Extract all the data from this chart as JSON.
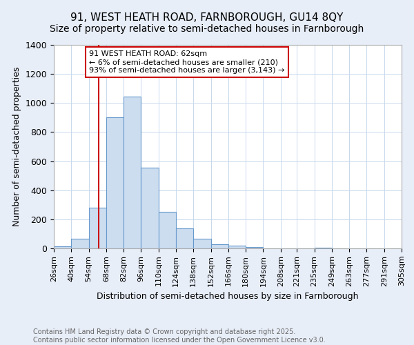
{
  "title1": "91, WEST HEATH ROAD, FARNBOROUGH, GU14 8QY",
  "title2": "Size of property relative to semi-detached houses in Farnborough",
  "xlabel": "Distribution of semi-detached houses by size in Farnborough",
  "ylabel": "Number of semi-detached properties",
  "bin_edges": [
    26,
    40,
    54,
    68,
    82,
    96,
    110,
    124,
    138,
    152,
    166,
    180,
    194,
    208,
    221,
    235,
    249,
    263,
    277,
    291,
    305
  ],
  "bar_heights": [
    15,
    65,
    280,
    900,
    1045,
    555,
    250,
    140,
    65,
    30,
    20,
    10,
    0,
    0,
    0,
    5,
    0,
    0,
    0,
    0
  ],
  "bar_color": "#ccddf0",
  "bar_edge_color": "#6699cc",
  "property_size": 62,
  "vline_color": "#cc0000",
  "ylim": [
    0,
    1400
  ],
  "yticks": [
    0,
    200,
    400,
    600,
    800,
    1000,
    1200,
    1400
  ],
  "annotation_text": "91 WEST HEATH ROAD: 62sqm\n← 6% of semi-detached houses are smaller (210)\n93% of semi-detached houses are larger (3,143) →",
  "annotation_box_color": "#ffffff",
  "annotation_edge_color": "#cc0000",
  "footer_text": "Contains HM Land Registry data © Crown copyright and database right 2025.\nContains public sector information licensed under the Open Government Licence v3.0.",
  "background_color": "#e8eef8",
  "plot_background": "#ffffff",
  "title_fontsize": 11,
  "subtitle_fontsize": 10,
  "tick_label_fontsize": 8,
  "axis_label_fontsize": 9,
  "footer_fontsize": 7,
  "annotation_fontsize": 8
}
